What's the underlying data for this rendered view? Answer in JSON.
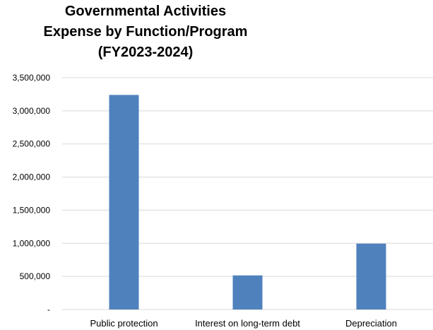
{
  "chart_data": {
    "type": "bar",
    "title_lines": [
      "Governmental Activities",
      "Expense by Function/Program",
      "(FY2023-2024)"
    ],
    "categories": [
      "Public protection",
      "Interest on long-term debt",
      "Depreciation"
    ],
    "values": [
      3240000,
      515000,
      995000
    ],
    "xlabel": "",
    "ylabel": "",
    "ylim": [
      0,
      3500000
    ],
    "yticks": [
      0,
      500000,
      1000000,
      1500000,
      2000000,
      2500000,
      3000000,
      3500000
    ],
    "ytick_labels": [
      "-",
      "500,000",
      "1,000,000",
      "1,500,000",
      "2,000,000",
      "2,500,000",
      "3,000,000",
      "3,500,000"
    ],
    "grid": true,
    "legend": "none",
    "bar_color": "#4f81bd",
    "grid_color": "#d9d9d9"
  }
}
